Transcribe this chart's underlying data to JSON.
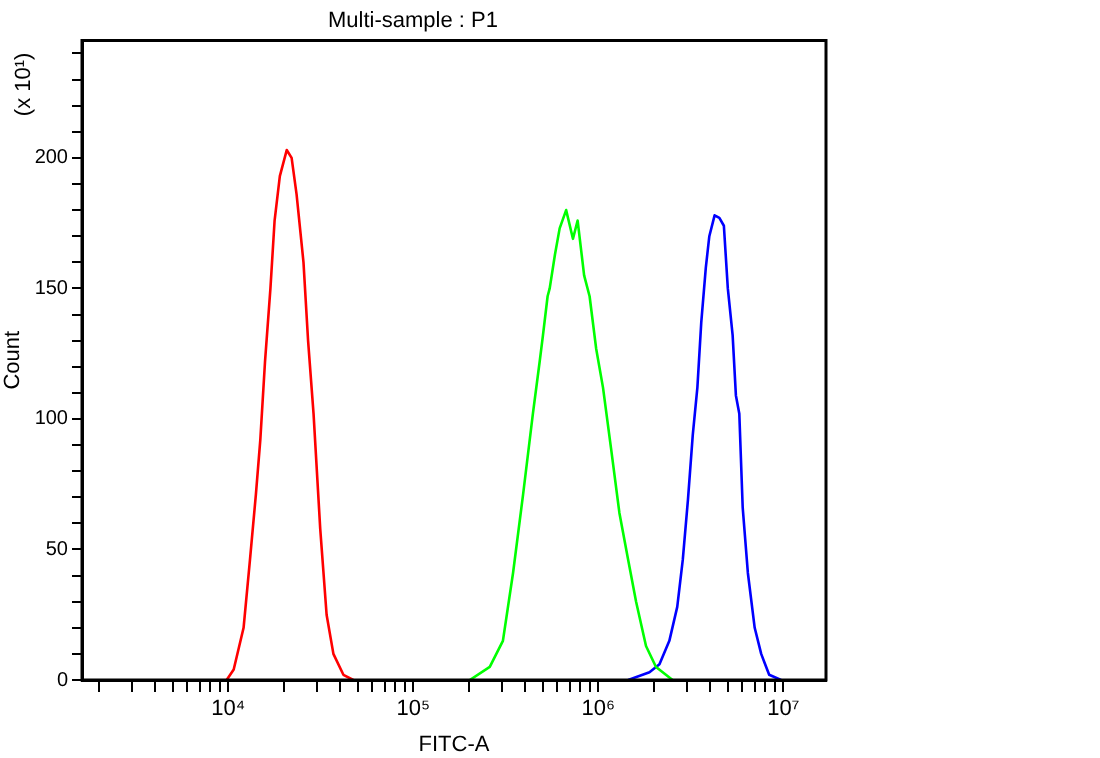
{
  "chart_data": {
    "type": "line",
    "title": "Multi-sample : P1",
    "xlabel": "FITC-A",
    "ylabel": "Count",
    "annotations": [
      "(x 10¹)"
    ],
    "log": "x",
    "grid": false,
    "legend": false,
    "marker": "none",
    "line_style": "solid",
    "xlim": [
      1620,
      17000000
    ],
    "ylim": [
      0,
      245
    ],
    "xticks": [
      {
        "value": 2000,
        "label": null
      },
      {
        "value": 3000,
        "label": null
      },
      {
        "value": 4000,
        "label": null
      },
      {
        "value": 5000,
        "label": null
      },
      {
        "value": 6000,
        "label": null
      },
      {
        "value": 7000,
        "label": null
      },
      {
        "value": 8000,
        "label": null
      },
      {
        "value": 9000,
        "label": null
      },
      {
        "value": 10000,
        "label": "10⁴"
      },
      {
        "value": 20000,
        "label": null
      },
      {
        "value": 30000,
        "label": null
      },
      {
        "value": 40000,
        "label": null
      },
      {
        "value": 50000,
        "label": null
      },
      {
        "value": 60000,
        "label": null
      },
      {
        "value": 70000,
        "label": null
      },
      {
        "value": 80000,
        "label": null
      },
      {
        "value": 90000,
        "label": null
      },
      {
        "value": 100000,
        "label": "10⁵"
      },
      {
        "value": 200000,
        "label": null
      },
      {
        "value": 300000,
        "label": null
      },
      {
        "value": 400000,
        "label": null
      },
      {
        "value": 500000,
        "label": null
      },
      {
        "value": 600000,
        "label": null
      },
      {
        "value": 700000,
        "label": null
      },
      {
        "value": 800000,
        "label": null
      },
      {
        "value": 900000,
        "label": null
      },
      {
        "value": 1000000,
        "label": "10⁶"
      },
      {
        "value": 2000000,
        "label": null
      },
      {
        "value": 3000000,
        "label": null
      },
      {
        "value": 4000000,
        "label": null
      },
      {
        "value": 5000000,
        "label": null
      },
      {
        "value": 6000000,
        "label": null
      },
      {
        "value": 7000000,
        "label": null
      },
      {
        "value": 8000000,
        "label": null
      },
      {
        "value": 9000000,
        "label": null
      },
      {
        "value": 10000000,
        "label": "10⁷"
      }
    ],
    "yticks": [
      0,
      {
        "value": 10,
        "label": null
      },
      {
        "value": 20,
        "label": null
      },
      {
        "value": 30,
        "label": null
      },
      {
        "value": 40,
        "label": null
      },
      50,
      {
        "value": 60,
        "label": null
      },
      {
        "value": 70,
        "label": null
      },
      {
        "value": 80,
        "label": null
      },
      {
        "value": 90,
        "label": null
      },
      100,
      {
        "value": 110,
        "label": null
      },
      {
        "value": 120,
        "label": null
      },
      {
        "value": 130,
        "label": null
      },
      {
        "value": 140,
        "label": null
      },
      150,
      {
        "value": 160,
        "label": null
      },
      {
        "value": 170,
        "label": null
      },
      {
        "value": 180,
        "label": null
      },
      {
        "value": 190,
        "label": null
      },
      200,
      {
        "value": 210,
        "label": null
      },
      {
        "value": 220,
        "label": null
      },
      {
        "value": 230,
        "label": null
      },
      {
        "value": 240,
        "label": null
      }
    ],
    "series": [
      {
        "color": "#ff0000",
        "x": [
          9800,
          10700,
          12100,
          13100,
          14100,
          14900,
          15800,
          16900,
          17800,
          19000,
          20700,
          22000,
          23400,
          25500,
          27000,
          28900,
          31400,
          34000,
          37000,
          41900,
          47400
        ],
        "values": [
          0,
          4,
          20,
          46,
          71,
          92,
          122,
          150,
          176,
          193,
          203,
          200,
          186,
          160,
          130,
          102,
          58,
          25,
          10,
          2,
          0
        ]
      },
      {
        "color": "#00ff00",
        "x": [
          202000,
          259000,
          305000,
          346000,
          392000,
          443000,
          482000,
          502000,
          532000,
          546000,
          583000,
          618000,
          670000,
          729000,
          773000,
          838000,
          897000,
          973000,
          1060000,
          1170000,
          1300000,
          1450000,
          1600000,
          1810000,
          2050000,
          2520000
        ],
        "values": [
          0,
          5,
          15,
          41,
          71,
          102,
          122,
          132,
          147,
          150,
          163,
          173,
          180,
          169,
          176,
          155,
          147,
          127,
          112,
          89,
          64,
          46,
          30,
          13,
          5,
          0
        ]
      },
      {
        "color": "#0000ff",
        "x": [
          1450000,
          1890000,
          2140000,
          2420000,
          2670000,
          2860000,
          3050000,
          3240000,
          3430000,
          3600000,
          3810000,
          3980000,
          4250000,
          4510000,
          4770000,
          5010000,
          5320000,
          5540000,
          5780000,
          6030000,
          6430000,
          7000000,
          7590000,
          8380000,
          9720000
        ],
        "values": [
          0,
          3,
          6,
          15,
          28,
          46,
          69,
          94,
          112,
          137,
          158,
          170,
          178,
          177,
          174,
          150,
          132,
          109,
          102,
          66,
          41,
          20,
          10,
          2,
          0
        ]
      }
    ]
  }
}
